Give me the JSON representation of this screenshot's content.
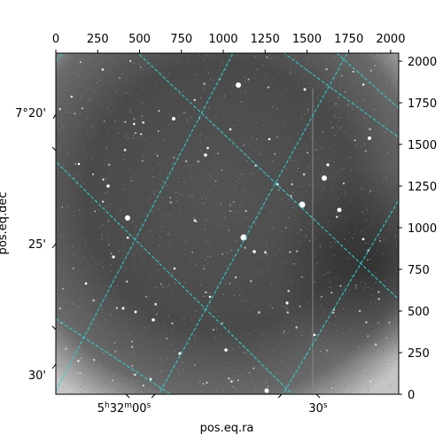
{
  "chart_data": {
    "type": "image",
    "xlabel": "pos.eq.ra",
    "ylabel": "pos.eq.dec",
    "pixel_axes": {
      "x_range": [
        0,
        2048
      ],
      "y_range": [
        0,
        2048
      ],
      "top_ticks": [
        "0",
        "250",
        "500",
        "750",
        "1000",
        "1250",
        "1500",
        "1750",
        "2000"
      ],
      "right_ticks": [
        "0",
        "250",
        "500",
        "750",
        "1000",
        "1250",
        "1500",
        "1750",
        "2000"
      ]
    },
    "world_axes": {
      "ra_ticks": [
        {
          "h": "5",
          "m": "32",
          "s": "00",
          "label": "5h32m00s"
        },
        {
          "s": "30",
          "label": "30s"
        }
      ],
      "dec_ticks": [
        "7°20'",
        "25'",
        "30'"
      ]
    },
    "grid": true,
    "grid_color": "#2ad4d4",
    "colormap": "gray"
  }
}
